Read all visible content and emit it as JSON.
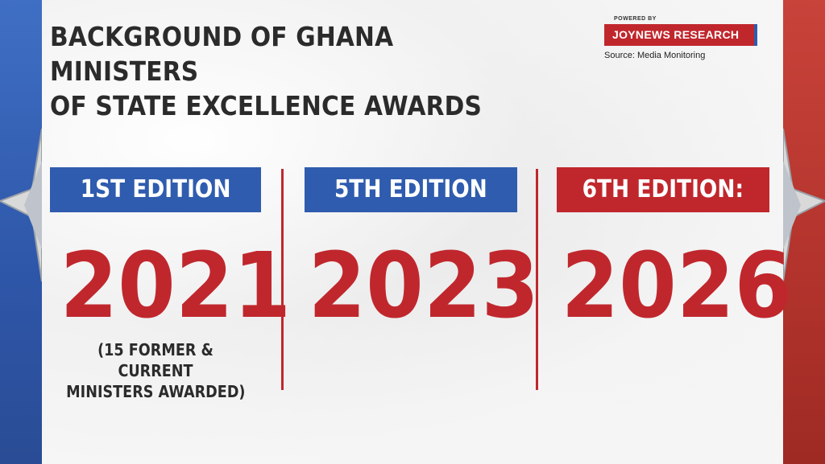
{
  "title_line1": "BACKGROUND OF GHANA MINISTERS",
  "title_line2": "OF STATE EXCELLENCE AWARDS",
  "brand": {
    "powered_by": "POWERED BY",
    "name": "JOYNEWS RESEARCH",
    "source": "Source: Media Monitoring"
  },
  "editions": [
    {
      "label": "1ST EDITION",
      "year": "2021",
      "note_line1": "(15 FORMER & CURRENT",
      "note_line2": "MINISTERS AWARDED)"
    },
    {
      "label": "5TH EDITION",
      "year": "2023"
    },
    {
      "label": "6TH EDITION:",
      "year": "2026"
    }
  ],
  "colors": {
    "blue": "#2f5cae",
    "red": "#c0272d",
    "text": "#2b2b2b"
  }
}
